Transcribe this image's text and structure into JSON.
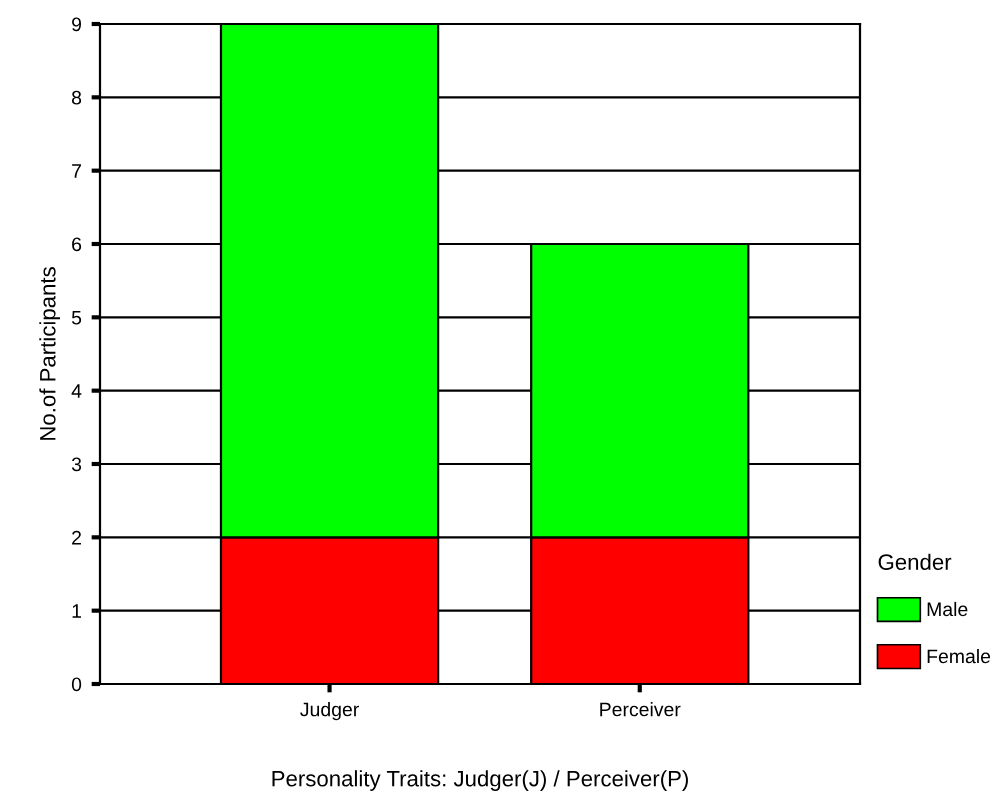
{
  "chart_data": {
    "type": "bar",
    "stacked": true,
    "xlabel": "Personality Traits: Judger(J) / Perceiver(P)",
    "ylabel": "No.of Participants",
    "categories": [
      "Judger",
      "Perceiver"
    ],
    "series": [
      {
        "name": "Female",
        "color": "#ff0000",
        "values": [
          2,
          2
        ]
      },
      {
        "name": "Male",
        "color": "#00ff00",
        "values": [
          7,
          4
        ]
      }
    ],
    "ylim": [
      0,
      9
    ],
    "yticks": [
      0,
      1,
      2,
      3,
      4,
      5,
      6,
      7,
      8,
      9
    ],
    "grid": "y",
    "legend": "right",
    "legend_title": "Gender"
  }
}
